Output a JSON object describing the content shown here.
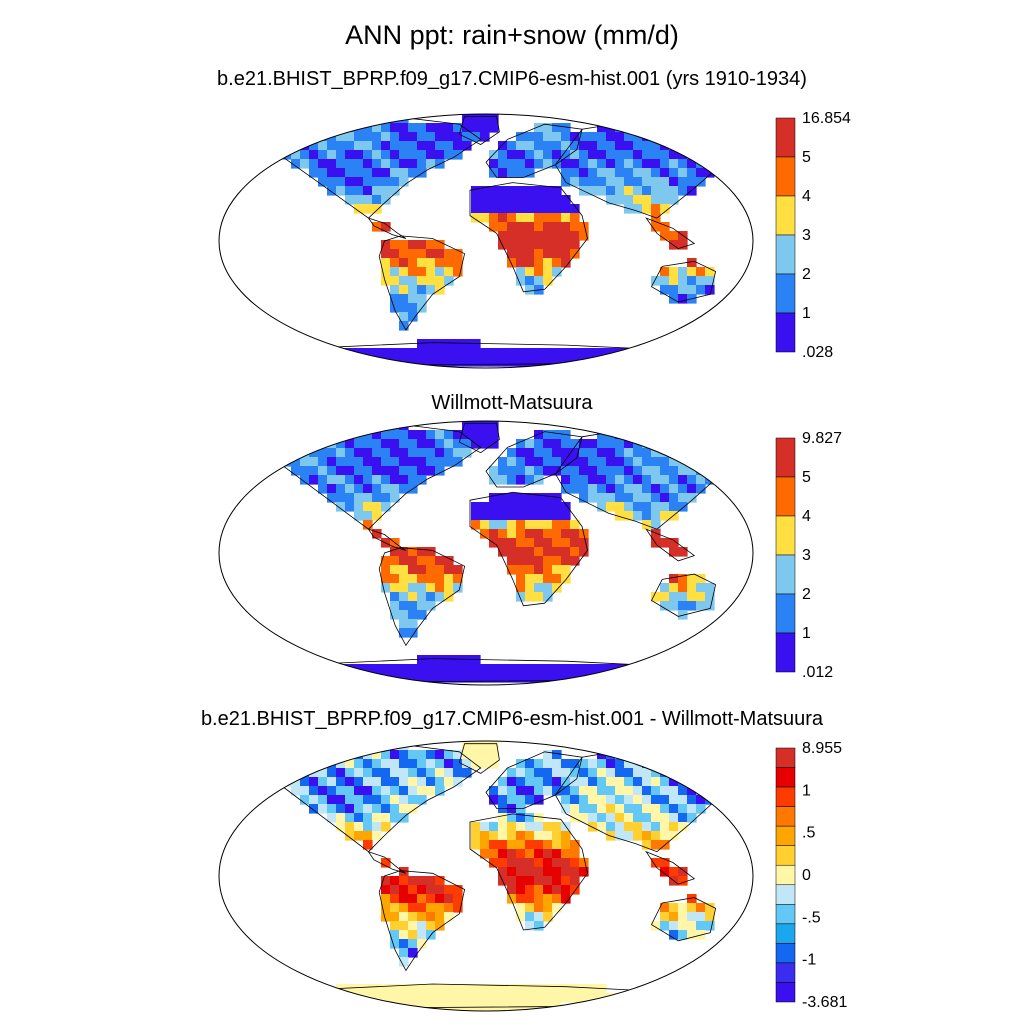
{
  "title": "ANN ppt: rain+snow (mm/d)",
  "panels": [
    {
      "title": "b.e21.BHIST_BPRP.f09_g17.CMIP6-esm-hist.001 (yrs 1910-1934)",
      "colorbar": {
        "labels": [
          "16.854",
          "5",
          "4",
          "3",
          "2",
          "1",
          ".028"
        ],
        "colors": [
          "#d62f27",
          "#ff6a00",
          "#ffe040",
          "#7ec8f0",
          "#2b82f5",
          "#3a0ff0"
        ]
      },
      "palette": [
        "#3a0ff0",
        "#2b82f5",
        "#7ec8f0",
        "#ffe040",
        "#ff6a00",
        "#d62f27"
      ]
    },
    {
      "title": "Willmott-Matsuura",
      "colorbar": {
        "labels": [
          "9.827",
          "5",
          "4",
          "3",
          "2",
          "1",
          ".012"
        ],
        "colors": [
          "#d62f27",
          "#ff6a00",
          "#ffe040",
          "#7ec8f0",
          "#2b82f5",
          "#3a0ff0"
        ]
      },
      "palette": [
        "#3a0ff0",
        "#2b82f5",
        "#7ec8f0",
        "#ffe040",
        "#ff6a00",
        "#d62f27"
      ]
    },
    {
      "title": "b.e21.BHIST_BPRP.f09_g17.CMIP6-esm-hist.001 - Willmott-Matsuura",
      "colorbar": {
        "labels": [
          "8.955",
          "1",
          ".5",
          "0",
          "-.5",
          "-1",
          "-3.681"
        ],
        "colors": [
          "#d62f27",
          "#e60000",
          "#ff3c00",
          "#ff7800",
          "#ffa500",
          "#ffd030",
          "#fff6a8",
          "#c0e6f7",
          "#63c8f5",
          "#1aa7ee",
          "#1467f0",
          "#3a2df0",
          "#3a0ff0"
        ]
      },
      "palette": [
        "#3a0ff0",
        "#1467f0",
        "#63c8f5",
        "#c0e6f7",
        "#fff6a8",
        "#ffd030",
        "#ffa500",
        "#ff7800",
        "#ff3c00",
        "#e60000",
        "#d62f27"
      ]
    }
  ]
}
